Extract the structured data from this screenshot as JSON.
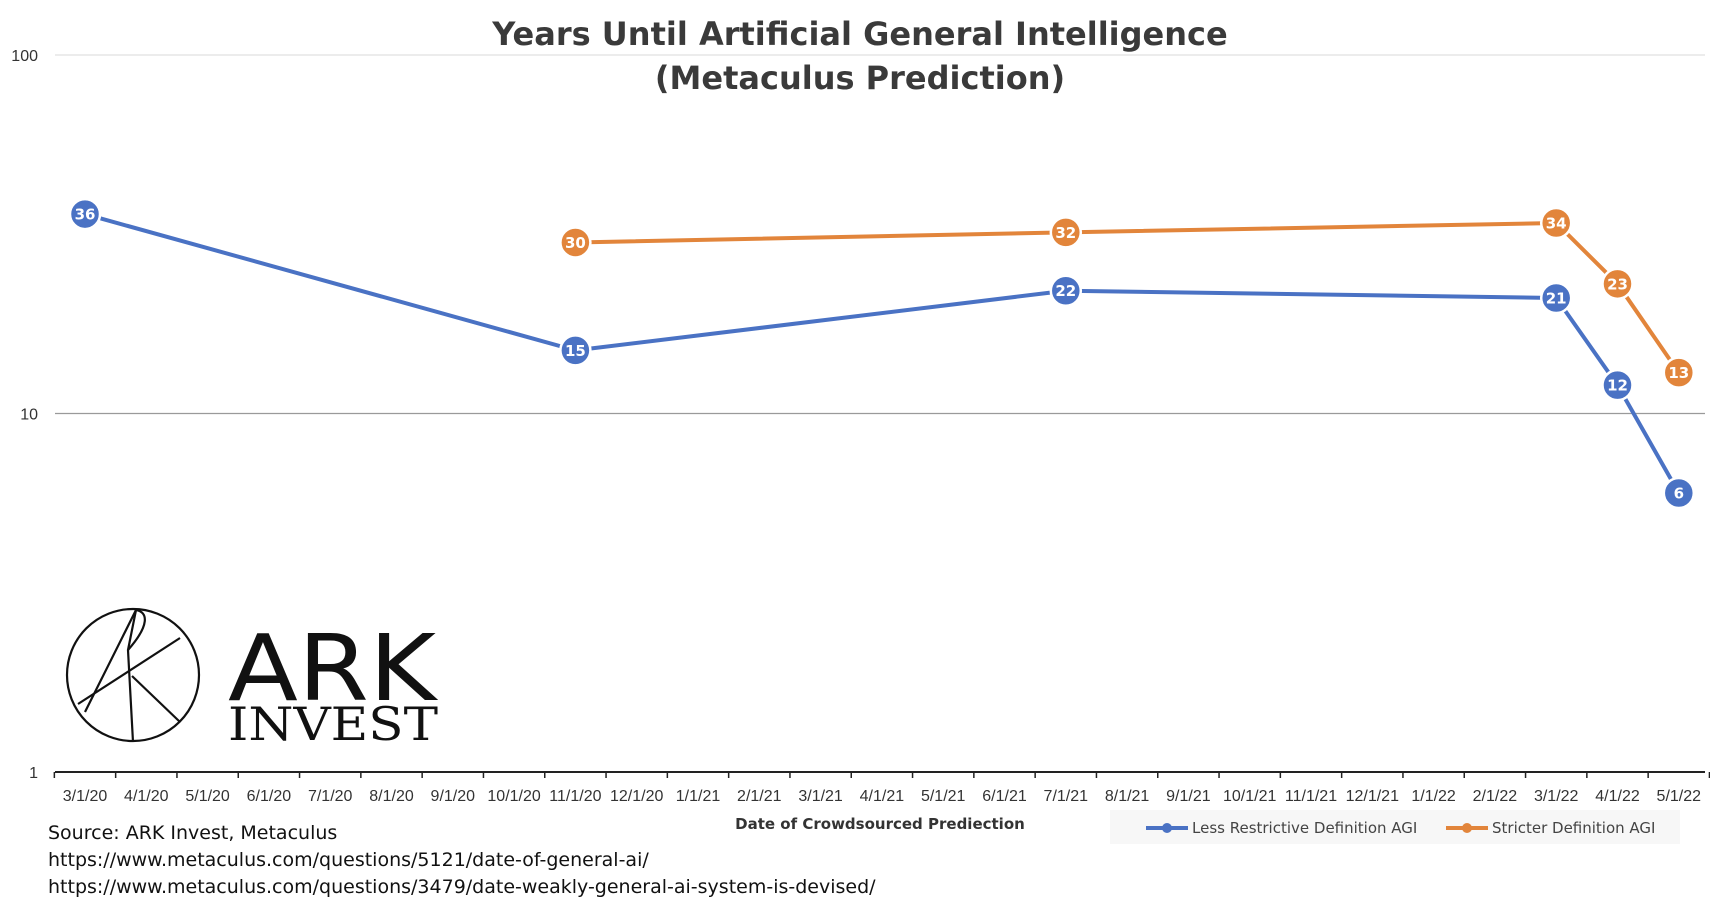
{
  "source_lines": [
    "Source: ARK Invest, Metaculus",
    "https://www.metaculus.com/questions/5121/date-of-general-ai/",
    "https://www.metaculus.com/questions/3479/date-weakly-general-ai-system-is-devised/"
  ],
  "logo": {
    "line1": "ARK",
    "line2": "INVEST"
  },
  "chart_data": {
    "type": "line",
    "title": [
      "Years Until Artificial General Intelligence",
      "(Metaculus Prediction)"
    ],
    "xlabel": "Date of Crowdsourced Prediection",
    "ylabel": "",
    "y_scale": "log",
    "ylim": [
      1,
      100
    ],
    "y_ticks": [
      "1",
      "10",
      "100"
    ],
    "categories": [
      "3/1/20",
      "4/1/20",
      "5/1/20",
      "6/1/20",
      "7/1/20",
      "8/1/20",
      "9/1/20",
      "10/1/20",
      "11/1/20",
      "12/1/20",
      "1/1/21",
      "2/1/21",
      "3/1/21",
      "4/1/21",
      "5/1/21",
      "6/1/21",
      "7/1/21",
      "8/1/21",
      "9/1/21",
      "10/1/21",
      "11/1/21",
      "12/1/21",
      "1/1/22",
      "2/1/22",
      "3/1/22",
      "4/1/22",
      "5/1/22"
    ],
    "grid": true,
    "legend_position": "bottom-right",
    "series": [
      {
        "name": "Less Restrictive Definition AGI",
        "color": "#4a72c4",
        "points": [
          {
            "x": "3/1/20",
            "y": 36,
            "label": "36"
          },
          {
            "x": "11/1/20",
            "y": 15,
            "label": "15"
          },
          {
            "x": "7/1/21",
            "y": 22,
            "label": "22"
          },
          {
            "x": "3/1/22",
            "y": 21,
            "label": "21"
          },
          {
            "x": "4/1/22",
            "y": 12,
            "label": "12"
          },
          {
            "x": "5/1/22",
            "y": 6,
            "label": "6"
          }
        ]
      },
      {
        "name": "Stricter Definition AGI",
        "color": "#e2853b",
        "points": [
          {
            "x": "11/1/20",
            "y": 30,
            "label": "30"
          },
          {
            "x": "7/1/21",
            "y": 32,
            "label": "32"
          },
          {
            "x": "3/1/22",
            "y": 34,
            "label": "34"
          },
          {
            "x": "4/1/22",
            "y": 23,
            "label": "23"
          },
          {
            "x": "5/1/22",
            "y": 13,
            "label": "13"
          }
        ]
      }
    ]
  }
}
